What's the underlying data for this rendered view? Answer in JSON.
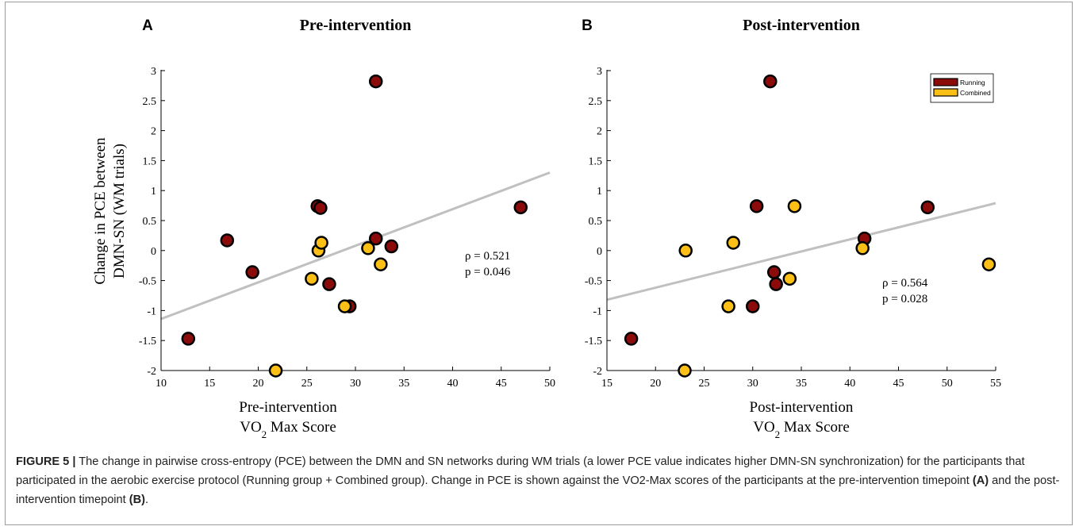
{
  "figure": {
    "caption_label": "FIGURE 5 |",
    "caption_text": "The change in pairwise cross-entropy (PCE) between the DMN and SN networks during WM trials (a lower PCE value indicates higher DMN-SN synchronization) for the participants that participated in the aerobic exercise protocol (Running group + Combined group). Change in PCE is shown against the VO2-Max scores of the participants at the pre-intervention timepoint ",
    "caption_ref_a": "(A)",
    "caption_mid": " and the post-intervention timepoint ",
    "caption_ref_b": "(B)",
    "caption_end": "."
  },
  "colors": {
    "running": "#8b0a0a",
    "combined": "#fbbf16",
    "fit_line": "#c0c0c0",
    "axis": "#000000"
  },
  "chart_data": [
    {
      "type": "scatter",
      "panel_label": "A",
      "title": "Pre-intervention",
      "xlabel_line1": "Pre-intervention",
      "xlabel_line2": "VO2 Max Score",
      "ylabel_line1": "Change in PCE between",
      "ylabel_line2": "DMN-SN  (WM trials)",
      "xlim": [
        10,
        50
      ],
      "ylim": [
        -2,
        3
      ],
      "xticks": [
        10,
        15,
        20,
        25,
        30,
        35,
        40,
        45,
        50
      ],
      "yticks": [
        -2,
        -1.5,
        -1,
        -0.5,
        0,
        0.5,
        1,
        1.5,
        2,
        2.5,
        3
      ],
      "legend": false,
      "fit_line": {
        "x": [
          10,
          50
        ],
        "y": [
          -1.14,
          1.3
        ]
      },
      "stats": [
        "ρ = 0.521",
        "p = 0.046"
      ],
      "series": [
        {
          "name": "Running",
          "points": [
            [
              12.8,
              -1.47
            ],
            [
              16.8,
              0.17
            ],
            [
              19.4,
              -0.36
            ],
            [
              26.1,
              0.74
            ],
            [
              26.4,
              0.71
            ],
            [
              27.3,
              -0.56
            ],
            [
              29.4,
              -0.93
            ],
            [
              32.1,
              2.82
            ],
            [
              32.1,
              0.2
            ],
            [
              33.7,
              0.07
            ],
            [
              47.0,
              0.72
            ]
          ]
        },
        {
          "name": "Combined",
          "points": [
            [
              21.8,
              -2.0
            ],
            [
              25.5,
              -0.47
            ],
            [
              26.2,
              0.0
            ],
            [
              26.5,
              0.13
            ],
            [
              28.9,
              -0.93
            ],
            [
              31.3,
              0.04
            ],
            [
              32.6,
              -0.23
            ]
          ]
        }
      ]
    },
    {
      "type": "scatter",
      "panel_label": "B",
      "title": "Post-intervention",
      "xlabel_line1": "Post-intervention",
      "xlabel_line2": "VO2 Max Score",
      "ylabel_line1": "",
      "ylabel_line2": "",
      "xlim": [
        15,
        55
      ],
      "ylim": [
        -2,
        3
      ],
      "xticks": [
        15,
        20,
        25,
        30,
        35,
        40,
        45,
        50,
        55
      ],
      "yticks": [
        -2,
        -1.5,
        -1,
        -0.5,
        0,
        0.5,
        1,
        1.5,
        2,
        2.5,
        3
      ],
      "legend": true,
      "legend_position": "top-right",
      "fit_line": {
        "x": [
          15,
          55
        ],
        "y": [
          -0.82,
          0.79
        ]
      },
      "stats": [
        "ρ = 0.564",
        "p = 0.028"
      ],
      "series": [
        {
          "name": "Running",
          "points": [
            [
              17.5,
              -1.47
            ],
            [
              30.0,
              -0.93
            ],
            [
              30.4,
              0.74
            ],
            [
              31.8,
              2.82
            ],
            [
              32.2,
              -0.36
            ],
            [
              32.4,
              -0.56
            ],
            [
              41.5,
              0.2
            ],
            [
              48.0,
              0.72
            ]
          ]
        },
        {
          "name": "Combined",
          "points": [
            [
              23.0,
              -2.0
            ],
            [
              23.1,
              0.0
            ],
            [
              27.5,
              -0.93
            ],
            [
              28.0,
              0.13
            ],
            [
              33.8,
              -0.47
            ],
            [
              34.3,
              0.74
            ],
            [
              41.3,
              0.04
            ],
            [
              54.3,
              -0.23
            ]
          ]
        }
      ]
    }
  ]
}
